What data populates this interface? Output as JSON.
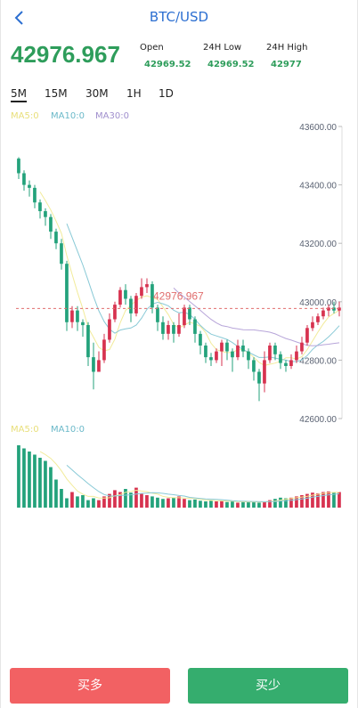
{
  "header": {
    "title": "BTC/USD"
  },
  "ticker": {
    "price": "42976.967",
    "open_label": "Open",
    "open_value": "42969.52",
    "low_label": "24H Low",
    "low_value": "42969.52",
    "high_label": "24H High",
    "high_value": "42977"
  },
  "tabs": [
    "5M",
    "15M",
    "30M",
    "1H",
    "1D"
  ],
  "active_tab": "5M",
  "legend_price": {
    "ma5": "MA5:0",
    "ma10": "MA10:0",
    "ma30": "MA30:0"
  },
  "legend_volume": {
    "ma5": "MA5:0",
    "ma10": "MA10:0"
  },
  "colors": {
    "up": "#d7324f",
    "down": "#23a27b",
    "ma5": "#f2eb9a",
    "ma10": "#88c9d6",
    "ma30": "#b7a5d9",
    "buy": "#f26163",
    "sell": "#35ad6e",
    "accent": "#2c6fd1"
  },
  "chart_data": {
    "type": "candlestick",
    "y_axis": {
      "ticks": [
        "43600.00",
        "43400.00",
        "43200.00",
        "43000.00",
        "42800.00",
        "42600.00"
      ],
      "range": [
        42600,
        43600
      ],
      "position": "right"
    },
    "last_price_label": "42976.967",
    "last_price": 42976.967,
    "candles": [
      [
        43490,
        43440,
        43495,
        43420
      ],
      [
        43440,
        43400,
        43450,
        43380
      ],
      [
        43400,
        43390,
        43415,
        43360
      ],
      [
        43390,
        43340,
        43400,
        43320
      ],
      [
        43340,
        43310,
        43350,
        43285
      ],
      [
        43310,
        43290,
        43320,
        43260
      ],
      [
        43290,
        43240,
        43300,
        43215
      ],
      [
        43240,
        43200,
        43250,
        43180
      ],
      [
        43200,
        43130,
        43215,
        43110
      ],
      [
        43130,
        42930,
        43140,
        42900
      ],
      [
        42930,
        42970,
        42985,
        42910
      ],
      [
        42970,
        42930,
        42985,
        42900
      ],
      [
        42930,
        42920,
        42940,
        42880
      ],
      [
        42920,
        42810,
        42930,
        42780
      ],
      [
        42810,
        42760,
        42860,
        42700
      ],
      [
        42760,
        42800,
        42830,
        42760
      ],
      [
        42800,
        42870,
        42890,
        42790
      ],
      [
        42870,
        42940,
        42960,
        42860
      ],
      [
        42940,
        42990,
        43000,
        42930
      ],
      [
        42990,
        43040,
        43050,
        42980
      ],
      [
        43040,
        43010,
        43060,
        42990
      ],
      [
        43010,
        42960,
        43020,
        42930
      ],
      [
        42960,
        43020,
        43030,
        42950
      ],
      [
        43020,
        43050,
        43080,
        43010
      ],
      [
        43050,
        43060,
        43080,
        43030
      ],
      [
        43060,
        42980,
        43070,
        42960
      ],
      [
        42980,
        42930,
        42990,
        42900
      ],
      [
        42930,
        42890,
        42950,
        42870
      ],
      [
        42890,
        42920,
        42935,
        42870
      ],
      [
        42920,
        42890,
        42930,
        42860
      ],
      [
        42890,
        42920,
        42960,
        42880
      ],
      [
        42920,
        42980,
        42990,
        42910
      ],
      [
        42980,
        42940,
        42990,
        42920
      ],
      [
        42940,
        42890,
        42950,
        42860
      ],
      [
        42890,
        42850,
        42900,
        42820
      ],
      [
        42850,
        42810,
        42860,
        42790
      ],
      [
        42810,
        42800,
        42825,
        42780
      ],
      [
        42800,
        42830,
        42840,
        42790
      ],
      [
        42830,
        42860,
        42870,
        42780
      ],
      [
        42860,
        42830,
        42870,
        42800
      ],
      [
        42830,
        42810,
        42840,
        42760
      ],
      [
        42810,
        42850,
        42870,
        42800
      ],
      [
        42850,
        42830,
        42870,
        42810
      ],
      [
        42830,
        42800,
        42840,
        42770
      ],
      [
        42800,
        42760,
        42810,
        42730
      ],
      [
        42760,
        42720,
        42770,
        42660
      ],
      [
        42720,
        42800,
        42830,
        42690
      ],
      [
        42800,
        42850,
        42860,
        42790
      ],
      [
        42850,
        42820,
        42860,
        42800
      ],
      [
        42820,
        42790,
        42830,
        42770
      ],
      [
        42790,
        42780,
        42800,
        42760
      ],
      [
        42780,
        42800,
        42820,
        42770
      ],
      [
        42800,
        42830,
        42850,
        42790
      ],
      [
        42830,
        42860,
        42880,
        42820
      ],
      [
        42860,
        42910,
        42920,
        42850
      ],
      [
        42910,
        42930,
        42950,
        42900
      ],
      [
        42930,
        42950,
        42960,
        42920
      ],
      [
        42950,
        42970,
        42980,
        42940
      ],
      [
        42970,
        42980,
        42990,
        42950
      ],
      [
        42980,
        42970,
        43000,
        42960
      ],
      [
        42970,
        42980,
        43000,
        42950
      ]
    ],
    "volume": {
      "range": [
        0,
        100
      ],
      "values": [
        100,
        95,
        90,
        85,
        80,
        75,
        65,
        45,
        30,
        15,
        25,
        18,
        20,
        12,
        15,
        12,
        18,
        22,
        28,
        25,
        30,
        24,
        32,
        22,
        20,
        18,
        16,
        14,
        15,
        16,
        18,
        14,
        12,
        13,
        11,
        10,
        12,
        10,
        11,
        9,
        10,
        8,
        9,
        10,
        9,
        8,
        10,
        12,
        14,
        16,
        15,
        16,
        18,
        20,
        22,
        24,
        23,
        25,
        26,
        24,
        25
      ]
    }
  },
  "buttons": {
    "buy_label": "买多",
    "sell_label": "买少"
  }
}
